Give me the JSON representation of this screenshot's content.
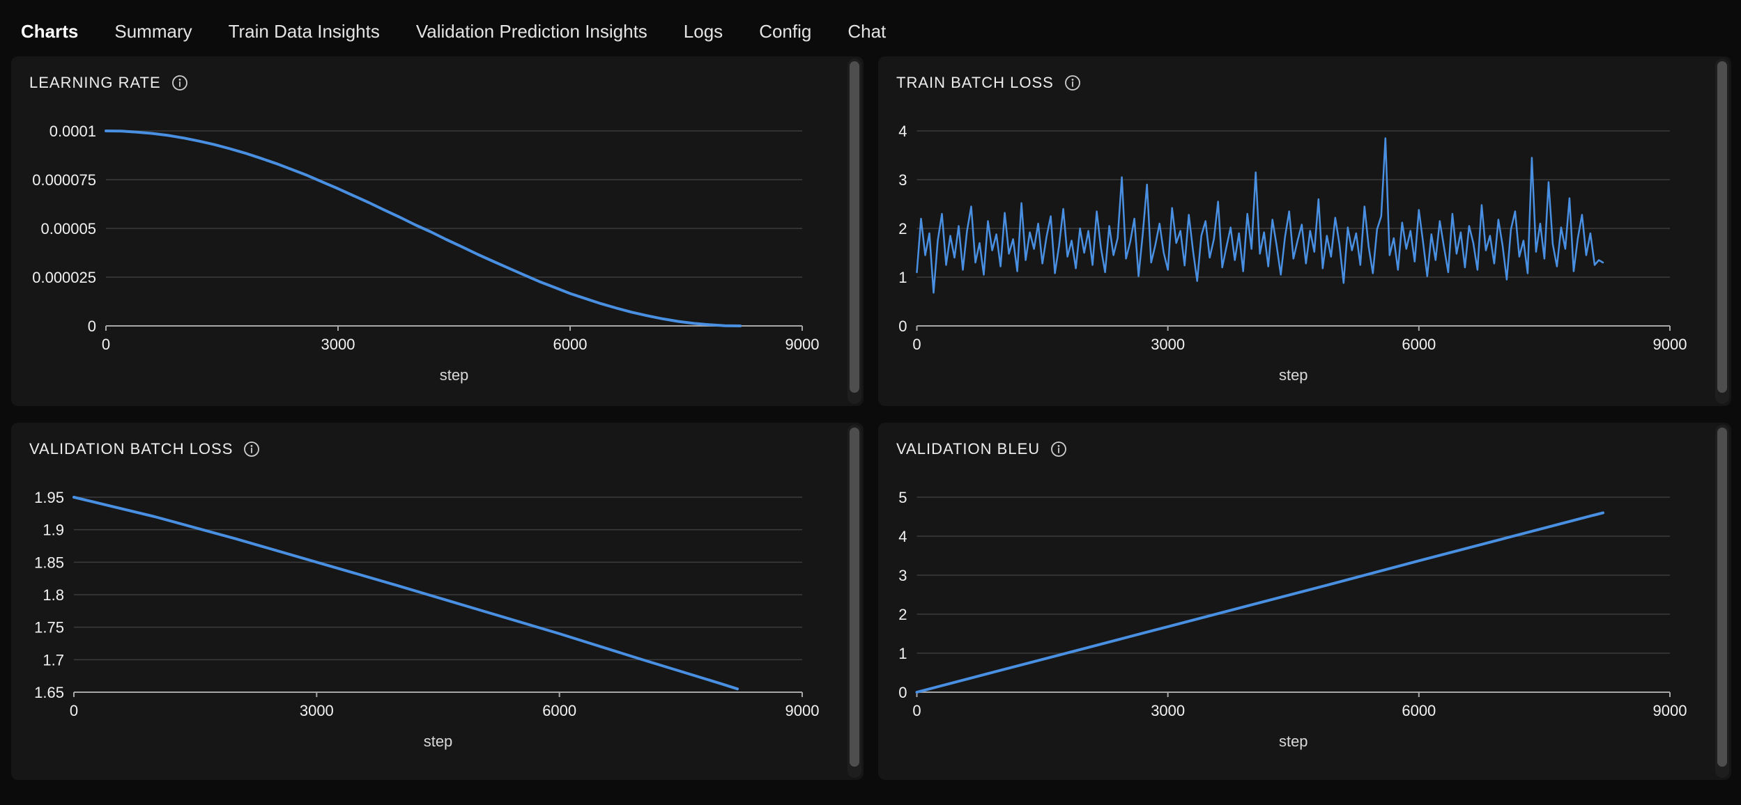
{
  "nav": {
    "tabs": [
      {
        "label": "Charts",
        "active": true
      },
      {
        "label": "Summary",
        "active": false
      },
      {
        "label": "Train Data Insights",
        "active": false
      },
      {
        "label": "Validation Prediction Insights",
        "active": false
      },
      {
        "label": "Logs",
        "active": false
      },
      {
        "label": "Config",
        "active": false
      },
      {
        "label": "Chat",
        "active": false
      }
    ]
  },
  "theme": {
    "page_bg": "#0b0b0b",
    "panel_bg": "#161616",
    "accent_underline": "#e8b64c",
    "line_color": "#4a90e2",
    "grid_color": "#3c3c3c",
    "axis_color": "#a8a8a8",
    "tick_label_color": "#f2f2f2",
    "title_color": "#ededed",
    "scrollbar_thumb": "#4e4e4e"
  },
  "chart_data": [
    {
      "id": "learning-rate",
      "type": "line",
      "title": "LEARNING RATE",
      "xlabel": "step",
      "xlim": [
        0,
        9000
      ],
      "x_ticks": [
        0,
        3000,
        6000,
        9000
      ],
      "y_ticks": [
        {
          "label": "0.0001",
          "value": 0.0001
        },
        {
          "label": "0.000075",
          "value": 7.5e-05
        },
        {
          "label": "0.00005",
          "value": 5e-05
        },
        {
          "label": "0.000025",
          "value": 2.5e-05
        },
        {
          "label": "0",
          "value": 0
        }
      ],
      "grid": true,
      "legend": false,
      "series": [
        {
          "name": "learning_rate",
          "x_start": 0,
          "x_step": 200,
          "y": [
            0.0001,
            9.99e-05,
            9.94e-05,
            9.87e-05,
            9.77e-05,
            9.64e-05,
            9.48e-05,
            9.3e-05,
            9.09e-05,
            8.86e-05,
            8.6e-05,
            8.33e-05,
            8.03e-05,
            7.72e-05,
            7.38e-05,
            7.04e-05,
            6.68e-05,
            6.32e-05,
            5.94e-05,
            5.57e-05,
            5.18e-05,
            4.82e-05,
            4.43e-05,
            4.06e-05,
            3.68e-05,
            3.32e-05,
            2.97e-05,
            2.62e-05,
            2.28e-05,
            1.97e-05,
            1.66e-05,
            1.4e-05,
            1.14e-05,
            9.1e-06,
            7e-06,
            5.2e-06,
            3.6e-06,
            2.3e-06,
            1.3e-06,
            6e-07,
            1e-07,
            0
          ]
        }
      ]
    },
    {
      "id": "train-batch-loss",
      "type": "line",
      "title": "TRAIN BATCH LOSS",
      "xlabel": "step",
      "xlim": [
        0,
        9000
      ],
      "x_ticks": [
        0,
        3000,
        6000,
        9000
      ],
      "y_ticks": [
        {
          "label": "4",
          "value": 4
        },
        {
          "label": "3",
          "value": 3
        },
        {
          "label": "2",
          "value": 2
        },
        {
          "label": "1",
          "value": 1
        },
        {
          "label": "0",
          "value": 0
        }
      ],
      "grid": true,
      "legend": false,
      "series": [
        {
          "name": "train_batch_loss",
          "x_start": 0,
          "x_step": 50,
          "y": [
            1.1,
            2.2,
            1.45,
            1.9,
            0.68,
            1.75,
            2.3,
            1.25,
            1.85,
            1.4,
            2.05,
            1.15,
            1.95,
            2.45,
            1.3,
            1.7,
            1.05,
            2.15,
            1.55,
            1.88,
            1.22,
            2.32,
            1.48,
            1.78,
            1.12,
            2.52,
            1.35,
            1.92,
            1.58,
            2.1,
            1.28,
            1.83,
            2.25,
            1.08,
            1.65,
            2.4,
            1.42,
            1.75,
            1.18,
            2.0,
            1.5,
            1.95,
            1.25,
            2.35,
            1.6,
            1.1,
            2.05,
            1.45,
            1.8,
            3.05,
            1.38,
            1.72,
            2.2,
            1.02,
            1.88,
            2.9,
            1.3,
            1.66,
            2.1,
            1.5,
            1.15,
            2.42,
            1.7,
            1.95,
            1.24,
            2.28,
            1.55,
            0.92,
            1.85,
            2.15,
            1.4,
            1.78,
            2.55,
            1.2,
            1.62,
            2.02,
            1.35,
            1.9,
            1.12,
            2.3,
            1.58,
            3.15,
            1.48,
            1.92,
            1.22,
            2.18,
            1.65,
            1.05,
            1.82,
            2.35,
            1.38,
            1.75,
            2.08,
            1.28,
            1.95,
            1.52,
            2.6,
            1.18,
            1.85,
            1.42,
            2.22,
            1.68,
            0.88,
            2.02,
            1.55,
            1.9,
            1.25,
            2.45,
            1.62,
            1.08,
            1.98,
            2.25,
            3.85,
            1.45,
            1.8,
            1.15,
            2.12,
            1.58,
            1.95,
            1.32,
            2.38,
            1.72,
            1.02,
            1.88,
            1.35,
            2.15,
            1.62,
            1.1,
            2.3,
            1.48,
            1.92,
            1.2,
            2.05,
            1.7,
            1.15,
            2.48,
            1.55,
            1.85,
            1.28,
            2.18,
            1.65,
            0.95,
            1.98,
            2.35,
            1.42,
            1.75,
            1.08,
            3.45,
            1.52,
            2.1,
            1.38,
            2.95,
            1.68,
            1.22,
            2.02,
            1.58,
            2.62,
            1.12,
            1.8,
            2.28,
            1.45,
            1.9,
            1.25,
            1.35,
            1.3
          ]
        }
      ]
    },
    {
      "id": "validation-batch-loss",
      "type": "line",
      "title": "VALIDATION BATCH LOSS",
      "xlabel": "step",
      "xlim": [
        0,
        9000
      ],
      "x_ticks": [
        0,
        3000,
        6000,
        9000
      ],
      "y_ticks": [
        {
          "label": "1.95",
          "value": 1.95
        },
        {
          "label": "1.9",
          "value": 1.9
        },
        {
          "label": "1.85",
          "value": 1.85
        },
        {
          "label": "1.8",
          "value": 1.8
        },
        {
          "label": "1.75",
          "value": 1.75
        },
        {
          "label": "1.7",
          "value": 1.7
        },
        {
          "label": "1.65",
          "value": 1.65
        }
      ],
      "grid": true,
      "legend": false,
      "series": [
        {
          "name": "validation_batch_loss",
          "x": [
            0,
            1000,
            2000,
            3000,
            4000,
            5000,
            6000,
            7000,
            8000,
            8200
          ],
          "y": [
            1.95,
            1.92,
            1.886,
            1.85,
            1.814,
            1.777,
            1.74,
            1.701,
            1.663,
            1.655
          ]
        }
      ]
    },
    {
      "id": "validation-bleu",
      "type": "line",
      "title": "VALIDATION BLEU",
      "xlabel": "step",
      "xlim": [
        0,
        9000
      ],
      "x_ticks": [
        0,
        3000,
        6000,
        9000
      ],
      "y_ticks": [
        {
          "label": "5",
          "value": 5
        },
        {
          "label": "4",
          "value": 4
        },
        {
          "label": "3",
          "value": 3
        },
        {
          "label": "2",
          "value": 2
        },
        {
          "label": "1",
          "value": 1
        },
        {
          "label": "0",
          "value": 0
        }
      ],
      "grid": true,
      "legend": false,
      "series": [
        {
          "name": "validation_bleu",
          "x": [
            0,
            1000,
            2000,
            3000,
            4000,
            5000,
            6000,
            7000,
            8000,
            8200
          ],
          "y": [
            0,
            0.56,
            1.12,
            1.68,
            2.24,
            2.8,
            3.37,
            3.93,
            4.49,
            4.6
          ]
        }
      ]
    }
  ]
}
